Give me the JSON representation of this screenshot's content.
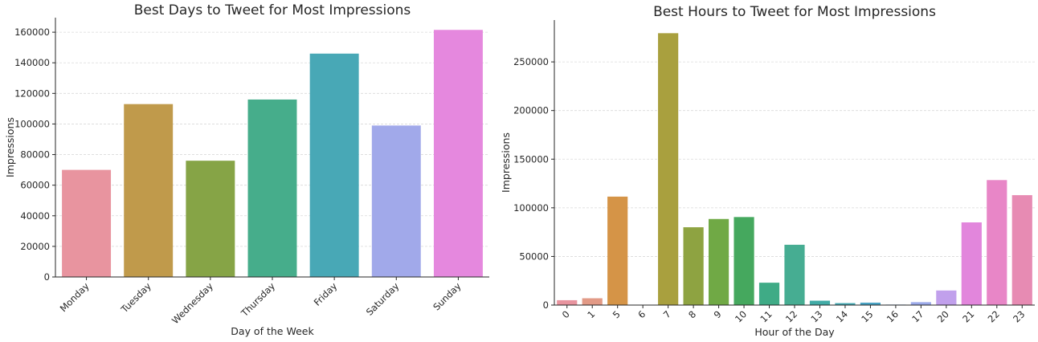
{
  "chart_data": [
    {
      "type": "bar",
      "title": "Best Days to Tweet for Most Impressions",
      "xlabel": "Day of the Week",
      "ylabel": "Impressions",
      "categories": [
        "Monday",
        "Tuesday",
        "Wednesday",
        "Thursday",
        "Friday",
        "Saturday",
        "Sunday"
      ],
      "values": [
        70000,
        113000,
        76000,
        116000,
        146000,
        99000,
        161500
      ],
      "colors": [
        "#e8949f",
        "#c09a4b",
        "#86a446",
        "#46ad8b",
        "#48a8b6",
        "#a1a9ea",
        "#e588de"
      ],
      "yticks": [
        0,
        20000,
        40000,
        60000,
        80000,
        100000,
        120000,
        140000,
        160000
      ],
      "ytick_labels": [
        "0",
        "20000",
        "40000",
        "60000",
        "80000",
        "100000",
        "120000",
        "140000",
        "160000"
      ],
      "ylim": [
        0,
        169500
      ],
      "grid": true
    },
    {
      "type": "bar",
      "title": "Best Hours to Tweet for Most Impressions",
      "xlabel": "Hour of the Day",
      "ylabel": "Impressions",
      "categories": [
        "0",
        "1",
        "5",
        "6",
        "7",
        "8",
        "9",
        "10",
        "11",
        "12",
        "13",
        "14",
        "15",
        "16",
        "17",
        "20",
        "21",
        "22",
        "23"
      ],
      "values": [
        5000,
        7000,
        111500,
        300,
        279500,
        80000,
        88500,
        90500,
        23000,
        62000,
        4500,
        2000,
        2500,
        500,
        3000,
        15000,
        85000,
        128500,
        113000
      ],
      "colors": [
        "#e8949f",
        "#e29a86",
        "#d59447",
        "#b89e45",
        "#a9a03e",
        "#8ea341",
        "#70a945",
        "#45a85e",
        "#3fab86",
        "#46ad92",
        "#41aba6",
        "#44a8b3",
        "#4aa3c4",
        "#6ca6df",
        "#9caaea",
        "#c1a0ec",
        "#e286dc",
        "#e886c7",
        "#e78bb3"
      ],
      "yticks": [
        0,
        50000,
        100000,
        150000,
        200000,
        250000
      ],
      "ytick_labels": [
        "0",
        "50000",
        "100000",
        "150000",
        "200000",
        "250000"
      ],
      "ylim": [
        0,
        293000
      ],
      "grid": true
    }
  ]
}
